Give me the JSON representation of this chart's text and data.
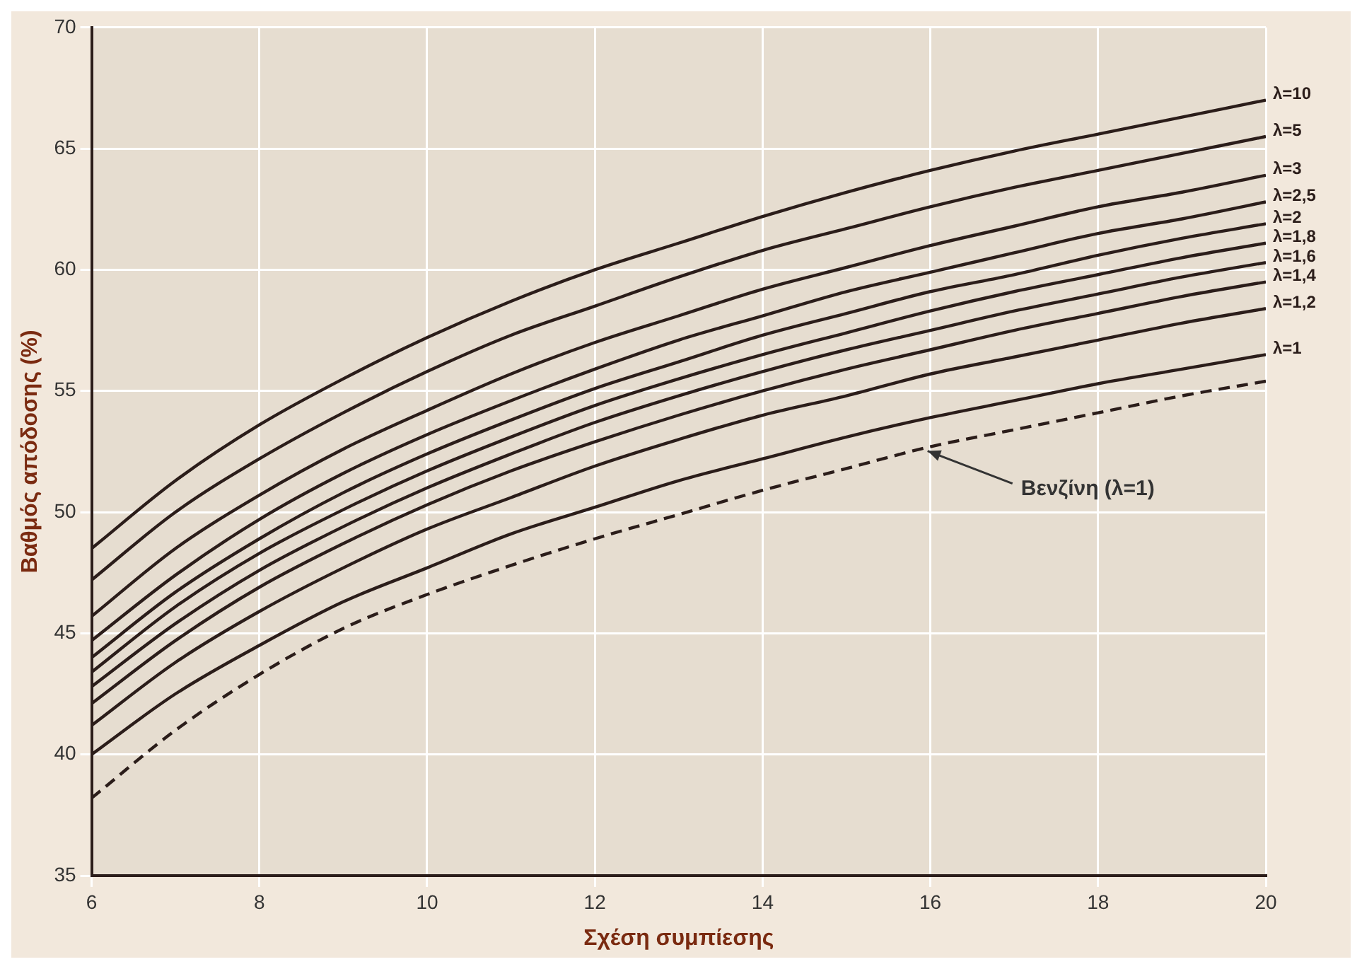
{
  "chart_data": {
    "type": "line",
    "xlabel": "Σχέση συμπίεσης",
    "ylabel": "Βαθμός απόδοσης (%)",
    "x": [
      6,
      7,
      8,
      9,
      10,
      11,
      12,
      13,
      14,
      15,
      16,
      17,
      18,
      19,
      20
    ],
    "xlim": [
      6,
      20
    ],
    "xticks": [
      6,
      8,
      10,
      12,
      14,
      16,
      18,
      20
    ],
    "ylim": [
      35,
      70
    ],
    "yticks": [
      35,
      40,
      45,
      50,
      55,
      60,
      65,
      70
    ],
    "grid": true,
    "legend": false,
    "marker": "none",
    "series": [
      {
        "name": "λ=10",
        "color": "#2b1d1a",
        "values": [
          48.5,
          51.3,
          53.6,
          55.5,
          57.2,
          58.7,
          60.0,
          61.1,
          62.2,
          63.2,
          64.1,
          64.9,
          65.6,
          66.3,
          67.0
        ]
      },
      {
        "name": "λ=5",
        "color": "#2b1d1a",
        "values": [
          47.2,
          50.0,
          52.2,
          54.1,
          55.8,
          57.3,
          58.5,
          59.7,
          60.8,
          61.7,
          62.6,
          63.4,
          64.1,
          64.8,
          65.5
        ]
      },
      {
        "name": "λ=3",
        "color": "#2b1d1a",
        "values": [
          45.7,
          48.5,
          50.7,
          52.6,
          54.2,
          55.7,
          57.0,
          58.1,
          59.2,
          60.1,
          61.0,
          61.8,
          62.6,
          63.2,
          63.9
        ]
      },
      {
        "name": "λ=2,5",
        "color": "#2b1d1a",
        "values": [
          44.7,
          47.4,
          49.7,
          51.6,
          53.2,
          54.6,
          55.9,
          57.1,
          58.1,
          59.1,
          59.9,
          60.7,
          61.5,
          62.1,
          62.8
        ]
      },
      {
        "name": "λ=2",
        "color": "#2b1d1a",
        "values": [
          44.0,
          46.7,
          48.9,
          50.8,
          52.4,
          53.8,
          55.1,
          56.2,
          57.3,
          58.2,
          59.1,
          59.8,
          60.6,
          61.3,
          61.9
        ]
      },
      {
        "name": "λ=1,8",
        "color": "#2b1d1a",
        "values": [
          43.4,
          46.1,
          48.3,
          50.1,
          51.7,
          53.1,
          54.4,
          55.5,
          56.5,
          57.4,
          58.3,
          59.1,
          59.8,
          60.5,
          61.1
        ]
      },
      {
        "name": "λ=1,6",
        "color": "#2b1d1a",
        "values": [
          42.8,
          45.4,
          47.6,
          49.4,
          51.0,
          52.4,
          53.7,
          54.8,
          55.8,
          56.7,
          57.5,
          58.3,
          59.0,
          59.7,
          60.3
        ]
      },
      {
        "name": "λ=1,4",
        "color": "#2b1d1a",
        "values": [
          42.1,
          44.7,
          46.9,
          48.7,
          50.3,
          51.7,
          52.9,
          54.0,
          55.0,
          55.9,
          56.7,
          57.5,
          58.2,
          58.9,
          59.5
        ]
      },
      {
        "name": "λ=1,2",
        "color": "#2b1d1a",
        "values": [
          41.2,
          43.8,
          45.9,
          47.7,
          49.3,
          50.6,
          51.9,
          53.0,
          54.0,
          54.8,
          55.7,
          56.4,
          57.1,
          57.8,
          58.4
        ]
      },
      {
        "name": "λ=1",
        "color": "#2b1d1a",
        "values": [
          40.0,
          42.5,
          44.5,
          46.3,
          47.7,
          49.1,
          50.2,
          51.3,
          52.2,
          53.1,
          53.9,
          54.6,
          55.3,
          55.9,
          56.5
        ]
      },
      {
        "color": "#2b1d1a",
        "line_style": "dashed",
        "values": [
          38.2,
          41.0,
          43.3,
          45.2,
          46.6,
          47.8,
          48.9,
          49.9,
          50.9,
          51.8,
          52.7,
          53.4,
          54.1,
          54.8,
          55.4
        ]
      }
    ],
    "annotations": [
      {
        "text": "Βενζίνη (λ=1)",
        "x": 15.9,
        "y": 52.7
      }
    ]
  }
}
